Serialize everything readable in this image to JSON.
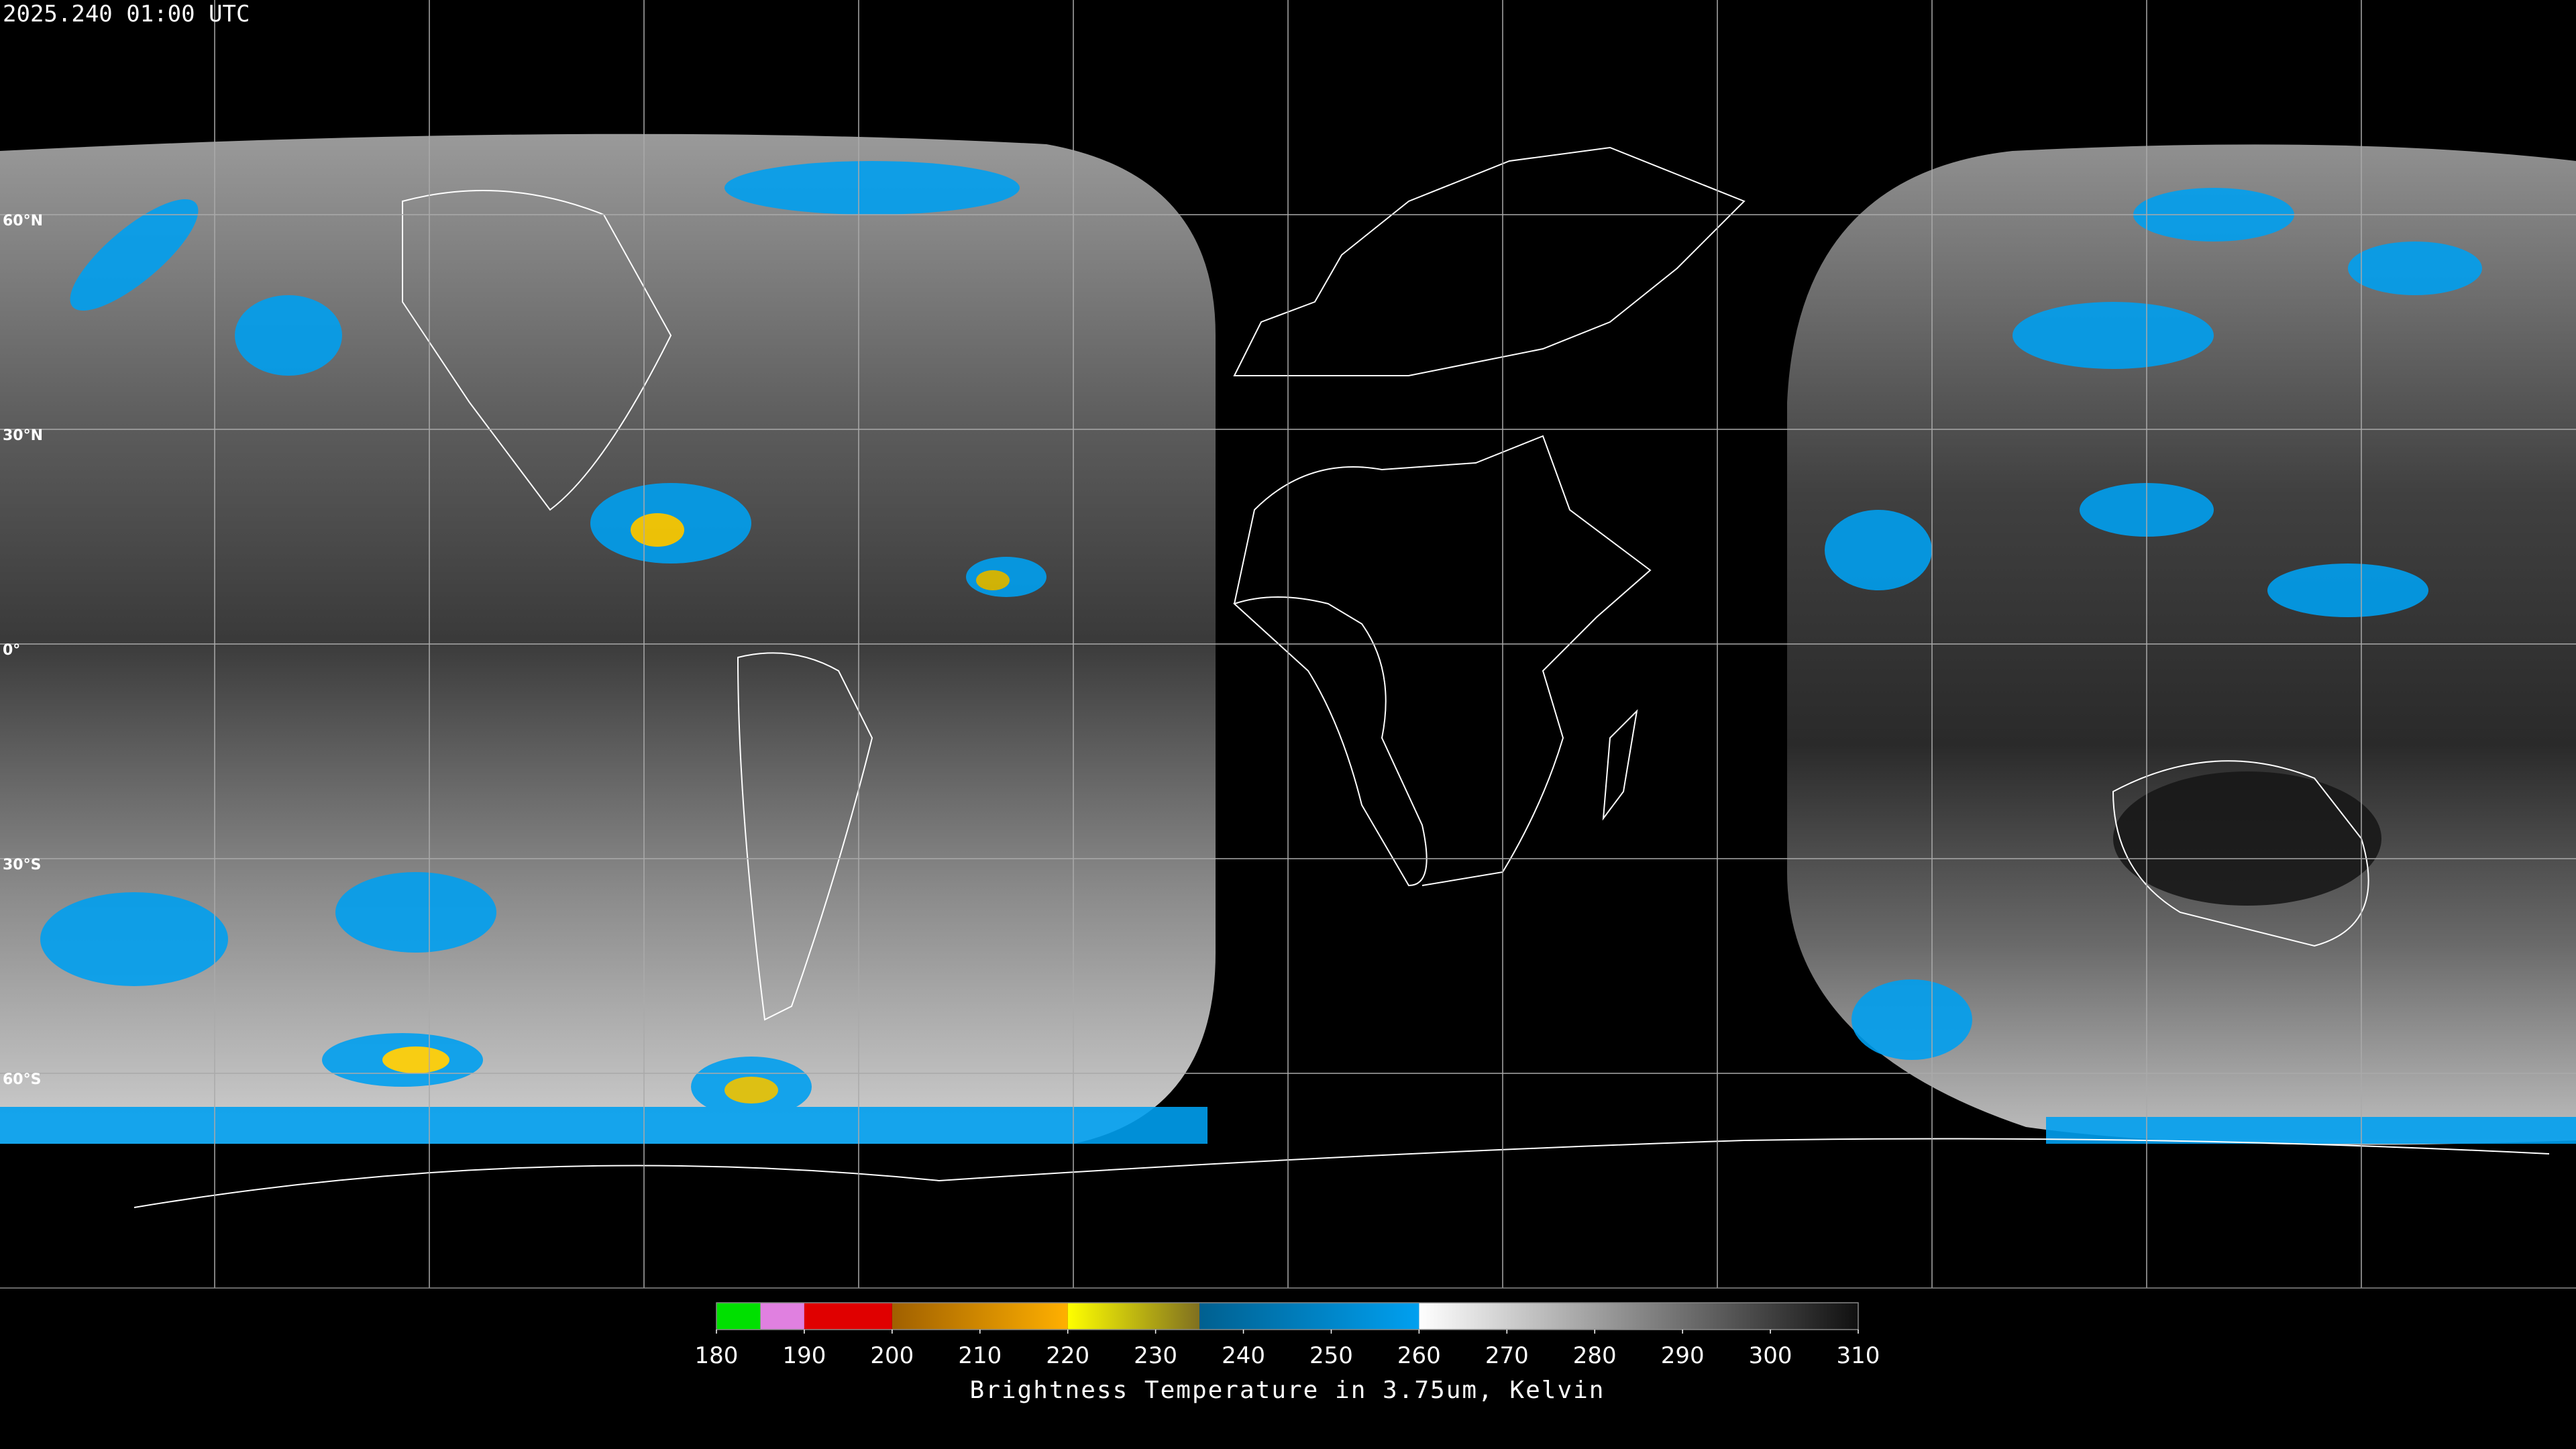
{
  "timestamp": "2025.240 01:00 UTC",
  "latitude_labels": [
    "60°N",
    "30°N",
    "0°",
    "30°S",
    "60°S"
  ],
  "colorbar": {
    "label": "Brightness Temperature in 3.75um, Kelvin",
    "range": [
      180,
      310
    ],
    "ticks": [
      180,
      190,
      200,
      210,
      220,
      230,
      240,
      250,
      260,
      270,
      280,
      290,
      300,
      310
    ],
    "segments": [
      {
        "from": 180,
        "to": 185,
        "colors": [
          "#00e000",
          "#00e000"
        ]
      },
      {
        "from": 185,
        "to": 190,
        "colors": [
          "#e080e0",
          "#e080e0"
        ]
      },
      {
        "from": 190,
        "to": 200,
        "colors": [
          "#e00000",
          "#e00000"
        ]
      },
      {
        "from": 200,
        "to": 220,
        "colors": [
          "#a06000",
          "#ffb000"
        ]
      },
      {
        "from": 220,
        "to": 235,
        "colors": [
          "#ffff00",
          "#807020"
        ]
      },
      {
        "from": 235,
        "to": 260,
        "colors": [
          "#006090",
          "#00a0f0"
        ]
      },
      {
        "from": 260,
        "to": 310,
        "colors": [
          "#ffffff",
          "#101010"
        ]
      }
    ]
  }
}
